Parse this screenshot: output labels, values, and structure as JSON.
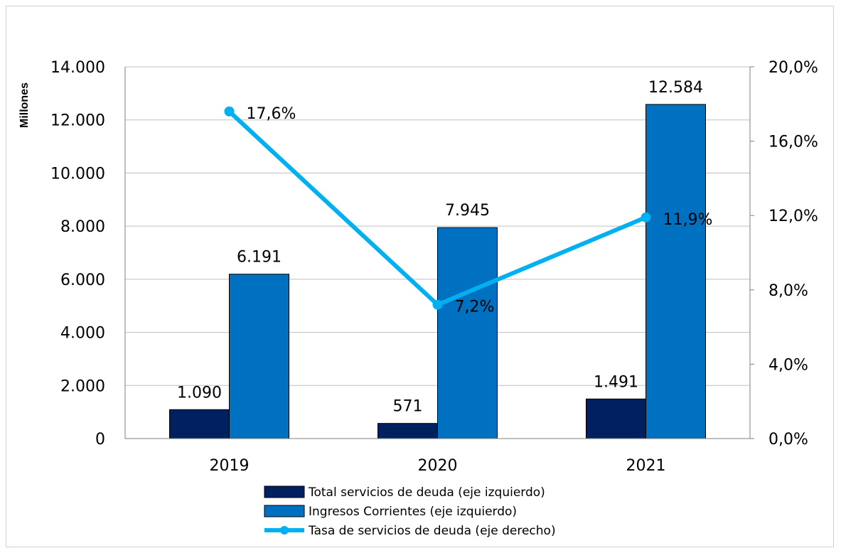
{
  "chart_data": {
    "type": "bar",
    "ylabel": "Millones",
    "categories": [
      "2019",
      "2020",
      "2021"
    ],
    "y_left": {
      "min": 0,
      "max": 14000,
      "step": 2000,
      "tick_labels": [
        "0",
        "2.000",
        "4.000",
        "6.000",
        "8.000",
        "10.000",
        "12.000",
        "14.000"
      ]
    },
    "y_right": {
      "min": 0,
      "max": 20,
      "step": 4,
      "tick_labels": [
        "0,0%",
        "4,0%",
        "8,0%",
        "12,0%",
        "16,0%",
        "20,0%"
      ]
    },
    "grid": true,
    "legend_position": "bottom",
    "series": [
      {
        "name": "Total servicios de deuda (eje izquierdo)",
        "type": "bar",
        "axis": "left",
        "color": "#002060",
        "values": [
          1090,
          571,
          1491
        ],
        "labels": [
          "1.090",
          "571",
          "1.491"
        ]
      },
      {
        "name": "Ingresos Corrientes (eje izquierdo)",
        "type": "bar",
        "axis": "left",
        "color": "#0070c0",
        "values": [
          6191,
          7945,
          12584
        ],
        "labels": [
          "6.191",
          "7.945",
          "12.584"
        ]
      },
      {
        "name": "Tasa de servicios de deuda (eje derecho)",
        "type": "line",
        "axis": "right",
        "color": "#00b0f0",
        "values": [
          17.6,
          7.2,
          11.9
        ],
        "labels": [
          "17,6%",
          "7,2%",
          "11,9%"
        ]
      }
    ]
  }
}
